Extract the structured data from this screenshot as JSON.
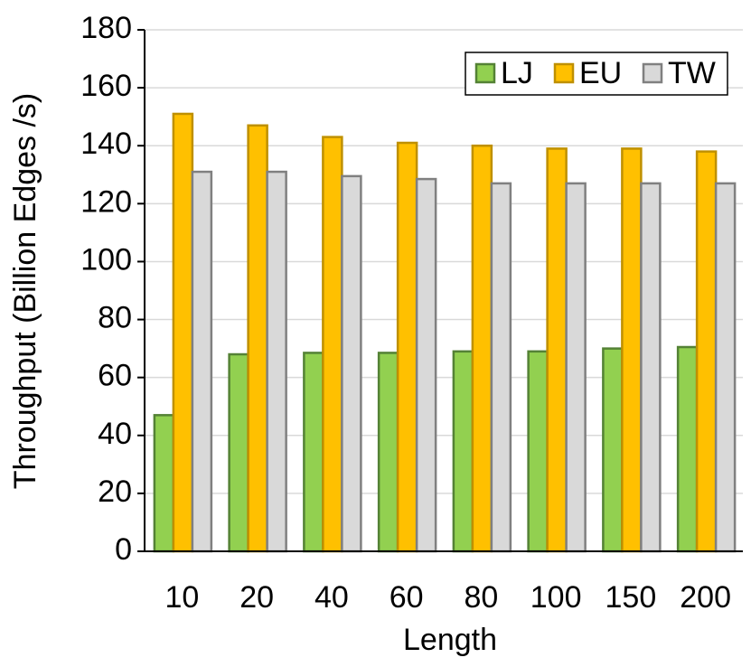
{
  "chart_data": {
    "type": "bar",
    "x_label": "Length",
    "y_label": "Throughput (Billion Edges /s)",
    "categories": [
      "10",
      "20",
      "40",
      "60",
      "80",
      "100",
      "150",
      "200"
    ],
    "series": [
      {
        "name": "LJ",
        "color": "#92d050",
        "edgecolor": "#548235",
        "values": [
          47,
          68,
          68.5,
          68.5,
          69,
          69,
          70,
          70.5
        ]
      },
      {
        "name": "EU",
        "color": "#ffc000",
        "edgecolor": "#bf9000",
        "values": [
          151,
          147,
          143,
          141,
          140,
          139,
          139,
          138
        ]
      },
      {
        "name": "TW",
        "color": "#d9d9d9",
        "edgecolor": "#808080",
        "values": [
          131,
          131,
          129.5,
          128.5,
          127,
          127,
          127,
          127
        ]
      }
    ],
    "ylim": [
      0,
      180
    ],
    "yticks": [
      0,
      20,
      40,
      60,
      80,
      100,
      120,
      140,
      160,
      180
    ],
    "grid": true,
    "legend": "upper right"
  }
}
